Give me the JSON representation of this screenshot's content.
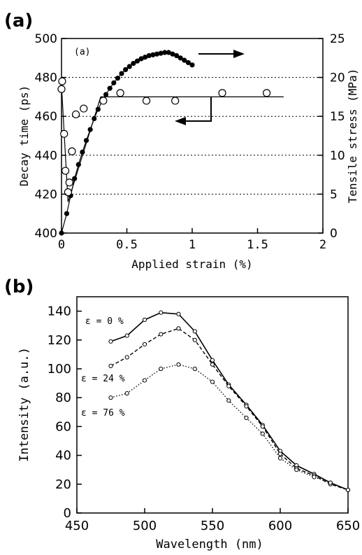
{
  "chart_data": [
    {
      "panel_label": "(a)",
      "inner_label": "(a)",
      "type": "scatter",
      "xlabel": "Applied strain (%)",
      "ylabel_left": "Decay time (ps)",
      "ylabel_right": "Tensile stress (MPa)",
      "xlim": [
        0,
        2
      ],
      "ylim_left": [
        400,
        500
      ],
      "ylim_right": [
        0,
        25
      ],
      "x_ticks": [
        "0",
        "0.5",
        "1",
        "1.5",
        "2"
      ],
      "y_ticks_left": [
        "400",
        "420",
        "440",
        "460",
        "480",
        "500"
      ],
      "y_ticks_right": [
        "0",
        "5",
        "10",
        "15",
        "20",
        "25"
      ],
      "grid": "horizontal dotted lines at right-axis 5, 10, 15, 20",
      "series": [
        {
          "axis": "left",
          "marker": "open circle",
          "points": [
            [
              0.0,
              474
            ],
            [
              0.005,
              478
            ],
            [
              0.02,
              451
            ],
            [
              0.03,
              432
            ],
            [
              0.05,
              421
            ],
            [
              0.06,
              426
            ],
            [
              0.08,
              442
            ],
            [
              0.11,
              461
            ],
            [
              0.17,
              464
            ],
            [
              0.32,
              468
            ],
            [
              0.45,
              472
            ],
            [
              0.65,
              468
            ],
            [
              0.87,
              468
            ],
            [
              1.23,
              472
            ],
            [
              1.57,
              472
            ]
          ],
          "fit_line": [
            [
              0,
              476
            ],
            [
              0.05,
              416
            ],
            [
              0.3,
              470
            ],
            [
              1.7,
              470
            ]
          ]
        },
        {
          "axis": "right",
          "marker": "filled circle",
          "points": [
            [
              0.0,
              0.0
            ],
            [
              0.04,
              2.5
            ],
            [
              0.07,
              4.8
            ],
            [
              0.1,
              7.0
            ],
            [
              0.13,
              8.8
            ],
            [
              0.16,
              10.4
            ],
            [
              0.19,
              11.9
            ],
            [
              0.22,
              13.3
            ],
            [
              0.25,
              14.7
            ],
            [
              0.28,
              15.9
            ],
            [
              0.31,
              16.9
            ],
            [
              0.34,
              17.8
            ],
            [
              0.37,
              18.6
            ],
            [
              0.4,
              19.3
            ],
            [
              0.43,
              19.9
            ],
            [
              0.46,
              20.5
            ],
            [
              0.49,
              21.0
            ],
            [
              0.52,
              21.4
            ],
            [
              0.55,
              21.8
            ],
            [
              0.58,
              22.1
            ],
            [
              0.61,
              22.4
            ],
            [
              0.64,
              22.6
            ],
            [
              0.67,
              22.8
            ],
            [
              0.7,
              22.9
            ],
            [
              0.73,
              23.0
            ],
            [
              0.76,
              23.1
            ],
            [
              0.79,
              23.2
            ],
            [
              0.82,
              23.2
            ],
            [
              0.85,
              23.0
            ],
            [
              0.88,
              22.8
            ],
            [
              0.91,
              22.5
            ],
            [
              0.94,
              22.2
            ],
            [
              0.97,
              21.9
            ],
            [
              1.0,
              21.6
            ]
          ]
        }
      ],
      "arrows": [
        "right (stress axis)",
        "left (decay time axis)"
      ]
    },
    {
      "panel_label": "(b)",
      "type": "line",
      "xlabel": "Wavelength (nm)",
      "ylabel": "Intensity (a.u.)",
      "xlim": [
        450,
        650
      ],
      "ylim": [
        0,
        150
      ],
      "x_ticks": [
        "450",
        "500",
        "550",
        "600",
        "650"
      ],
      "y_ticks": [
        "0",
        "20",
        "40",
        "60",
        "80",
        "100",
        "120",
        "140"
      ],
      "grid": false,
      "x": [
        475,
        487,
        500,
        512,
        525,
        537,
        550,
        562,
        575,
        587,
        600,
        612,
        625,
        637,
        650
      ],
      "series": [
        {
          "name": "ε = 0 %",
          "line_style": "solid",
          "values": [
            119,
            123,
            134,
            139,
            138,
            126,
            106,
            89,
            75,
            61,
            43,
            33,
            27,
            21,
            16
          ]
        },
        {
          "name": "ε = 24 %",
          "line_style": "dashed",
          "values": [
            102,
            108,
            117,
            124,
            128,
            120,
            103,
            88,
            74,
            60,
            41,
            31,
            26,
            20,
            16
          ]
        },
        {
          "name": "ε = 76 %",
          "line_style": "dotted",
          "values": [
            80,
            83,
            92,
            100,
            103,
            100,
            91,
            78,
            66,
            55,
            38,
            30,
            25,
            21,
            16
          ]
        }
      ]
    }
  ]
}
